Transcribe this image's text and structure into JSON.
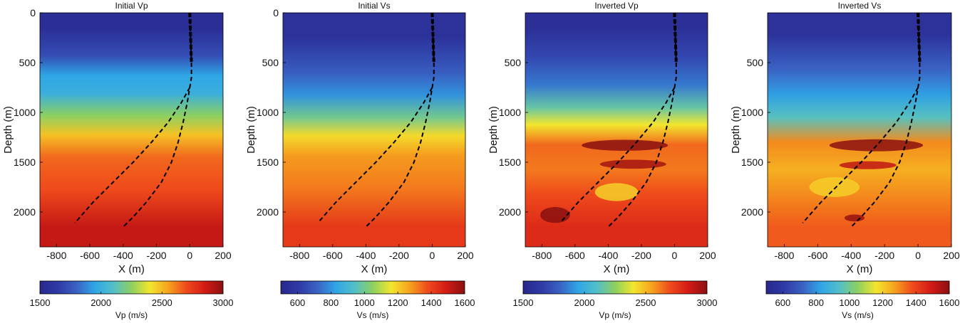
{
  "figure": {
    "description_id": "fwi-vp-vs-panels"
  },
  "colors": {
    "colormap": [
      "#28288c",
      "#2f3aa6",
      "#3a62c4",
      "#2fa6e6",
      "#52bfc8",
      "#8dd060",
      "#f3e62e",
      "#f6a31e",
      "#ef4a1c",
      "#d31b16",
      "#8b1010"
    ],
    "well_path": "#000000"
  },
  "chart_data": [
    {
      "type": "heatmap",
      "title": "Initial Vp",
      "xlabel": "X (m)",
      "ylabel": "Depth (m)",
      "xlim": [
        -900,
        200
      ],
      "ylim": [
        0,
        2350
      ],
      "xticks": [
        -800,
        -600,
        -400,
        -200,
        0,
        200
      ],
      "yticks": [
        0,
        500,
        1000,
        1500,
        2000
      ],
      "colorbar": {
        "label": "Vp (m/s)",
        "min": 1500,
        "max": 3000,
        "ticks": [
          1500,
          2000,
          2500,
          3000
        ]
      },
      "layers": [
        {
          "top": 0,
          "bottom": 300,
          "value": 1550
        },
        {
          "top": 300,
          "bottom": 560,
          "value": 1720
        },
        {
          "top": 560,
          "bottom": 700,
          "value": 1950
        },
        {
          "top": 700,
          "bottom": 920,
          "value": 2000
        },
        {
          "top": 920,
          "bottom": 1150,
          "value": 2250
        },
        {
          "top": 1150,
          "bottom": 1300,
          "value": 2480
        },
        {
          "top": 1300,
          "bottom": 1600,
          "value": 2650
        },
        {
          "top": 1600,
          "bottom": 1950,
          "value": 2700
        },
        {
          "top": 1950,
          "bottom": 2350,
          "value": 2880
        }
      ],
      "well_paths": [
        {
          "name": "vertical",
          "x": [
            0,
            5,
            10,
            10,
            0,
            -15,
            -40,
            -70,
            -110,
            -170,
            -260,
            -340,
            -400
          ],
          "depth": [
            0,
            250,
            500,
            650,
            750,
            900,
            1100,
            1300,
            1500,
            1700,
            1900,
            2050,
            2150
          ]
        },
        {
          "name": "deviated",
          "x": [
            0,
            -50,
            -130,
            -230,
            -340,
            -460,
            -580,
            -690
          ],
          "depth": [
            750,
            900,
            1100,
            1300,
            1500,
            1700,
            1900,
            2110
          ]
        }
      ]
    },
    {
      "type": "heatmap",
      "title": "Initial Vs",
      "xlabel": "X (m)",
      "ylabel": "Depth (m)",
      "xlim": [
        -900,
        200
      ],
      "ylim": [
        0,
        2350
      ],
      "xticks": [
        -800,
        -600,
        -400,
        -200,
        0,
        200
      ],
      "yticks": [
        0,
        500,
        1000,
        1500,
        2000
      ],
      "colorbar": {
        "label": "Vs (m/s)",
        "min": 500,
        "max": 1600,
        "ticks": [
          600,
          800,
          1000,
          1200,
          1400,
          1600
        ]
      },
      "layers": [
        {
          "top": 0,
          "bottom": 480,
          "value": 560
        },
        {
          "top": 480,
          "bottom": 700,
          "value": 700
        },
        {
          "top": 700,
          "bottom": 950,
          "value": 800
        },
        {
          "top": 950,
          "bottom": 1150,
          "value": 1000
        },
        {
          "top": 1150,
          "bottom": 1320,
          "value": 1180
        },
        {
          "top": 1320,
          "bottom": 1550,
          "value": 1280
        },
        {
          "top": 1550,
          "bottom": 1950,
          "value": 1320
        },
        {
          "top": 1950,
          "bottom": 2350,
          "value": 1420
        }
      ],
      "well_paths": [
        {
          "name": "vertical",
          "x": [
            0,
            5,
            10,
            10,
            0,
            -15,
            -40,
            -70,
            -110,
            -170,
            -260,
            -340,
            -400
          ],
          "depth": [
            0,
            250,
            500,
            650,
            750,
            900,
            1100,
            1300,
            1500,
            1700,
            1900,
            2050,
            2150
          ]
        },
        {
          "name": "deviated",
          "x": [
            0,
            -50,
            -130,
            -230,
            -340,
            -460,
            -580,
            -690
          ],
          "depth": [
            750,
            900,
            1100,
            1300,
            1500,
            1700,
            1900,
            2110
          ]
        }
      ]
    },
    {
      "type": "heatmap",
      "title": "Inverted Vp",
      "xlabel": "X (m)",
      "ylabel": "Depth (m)",
      "xlim": [
        -900,
        200
      ],
      "ylim": [
        0,
        2350
      ],
      "xticks": [
        -800,
        -600,
        -400,
        -200,
        0,
        200
      ],
      "yticks": [
        500,
        1000,
        1500,
        2000
      ],
      "colorbar": {
        "label": "Vp (m/s)",
        "min": 1500,
        "max": 3000,
        "ticks": [
          1500,
          2000,
          2500,
          3000
        ]
      },
      "layers": [
        {
          "top": 0,
          "bottom": 280,
          "value": 1560
        },
        {
          "top": 280,
          "bottom": 600,
          "value": 1700
        },
        {
          "top": 600,
          "bottom": 850,
          "value": 1850
        },
        {
          "top": 850,
          "bottom": 1050,
          "value": 2150
        },
        {
          "top": 1050,
          "bottom": 1200,
          "value": 2400
        },
        {
          "top": 1200,
          "bottom": 1450,
          "value": 2650
        },
        {
          "top": 1450,
          "bottom": 1700,
          "value": 2620
        },
        {
          "top": 1700,
          "bottom": 1950,
          "value": 2700
        },
        {
          "top": 1950,
          "bottom": 2350,
          "value": 2800
        }
      ],
      "anomalies": [
        {
          "x": -300,
          "depth": 1330,
          "rx": 260,
          "rdepth": 55,
          "value": 3000
        },
        {
          "x": -250,
          "depth": 1520,
          "rx": 200,
          "rdepth": 45,
          "value": 2950
        },
        {
          "x": -720,
          "depth": 2030,
          "rx": 90,
          "rdepth": 80,
          "value": 3000
        },
        {
          "x": -350,
          "depth": 1800,
          "rx": 130,
          "rdepth": 90,
          "value": 2450
        }
      ],
      "well_paths": [
        {
          "name": "vertical",
          "x": [
            0,
            5,
            10,
            10,
            0,
            -15,
            -40,
            -70,
            -110,
            -170,
            -260,
            -340,
            -400
          ],
          "depth": [
            0,
            250,
            500,
            650,
            750,
            900,
            1100,
            1300,
            1500,
            1700,
            1900,
            2050,
            2150
          ]
        },
        {
          "name": "deviated",
          "x": [
            0,
            -50,
            -130,
            -230,
            -340,
            -460,
            -580,
            -690
          ],
          "depth": [
            750,
            900,
            1100,
            1300,
            1500,
            1700,
            1900,
            2110
          ]
        }
      ]
    },
    {
      "type": "heatmap",
      "title": "Inverted Vs",
      "xlabel": "X (m)",
      "ylabel": "Depth (m)",
      "xlim": [
        -900,
        200
      ],
      "ylim": [
        0,
        2350
      ],
      "xticks": [
        -800,
        -600,
        -400,
        -200,
        0,
        200
      ],
      "yticks": [
        500,
        1000,
        1500,
        2000
      ],
      "colorbar": {
        "label": "Vs (m/s)",
        "min": 500,
        "max": 1600,
        "ticks": [
          600,
          800,
          1000,
          1200,
          1400,
          1600
        ]
      },
      "layers": [
        {
          "top": 0,
          "bottom": 430,
          "value": 560
        },
        {
          "top": 430,
          "bottom": 700,
          "value": 720
        },
        {
          "top": 700,
          "bottom": 950,
          "value": 820
        },
        {
          "top": 950,
          "bottom": 1150,
          "value": 950
        },
        {
          "top": 1150,
          "bottom": 1450,
          "value": 1300
        },
        {
          "top": 1450,
          "bottom": 1700,
          "value": 1250
        },
        {
          "top": 1700,
          "bottom": 1950,
          "value": 1300
        },
        {
          "top": 1950,
          "bottom": 2350,
          "value": 1360
        }
      ],
      "anomalies": [
        {
          "x": -250,
          "depth": 1330,
          "rx": 280,
          "rdepth": 60,
          "value": 1600
        },
        {
          "x": -300,
          "depth": 1530,
          "rx": 170,
          "rdepth": 40,
          "value": 1520
        },
        {
          "x": -380,
          "depth": 2060,
          "rx": 60,
          "rdepth": 35,
          "value": 1580
        },
        {
          "x": -500,
          "depth": 1750,
          "rx": 150,
          "rdepth": 100,
          "value": 1200
        }
      ],
      "well_paths": [
        {
          "name": "vertical",
          "x": [
            0,
            5,
            10,
            10,
            0,
            -15,
            -40,
            -70,
            -110,
            -170,
            -260,
            -340,
            -400
          ],
          "depth": [
            0,
            250,
            500,
            650,
            750,
            900,
            1100,
            1300,
            1500,
            1700,
            1900,
            2050,
            2150
          ]
        },
        {
          "name": "deviated",
          "x": [
            0,
            -50,
            -130,
            -230,
            -340,
            -460,
            -580,
            -690
          ],
          "depth": [
            750,
            900,
            1100,
            1300,
            1500,
            1700,
            1900,
            2110
          ]
        }
      ]
    }
  ]
}
